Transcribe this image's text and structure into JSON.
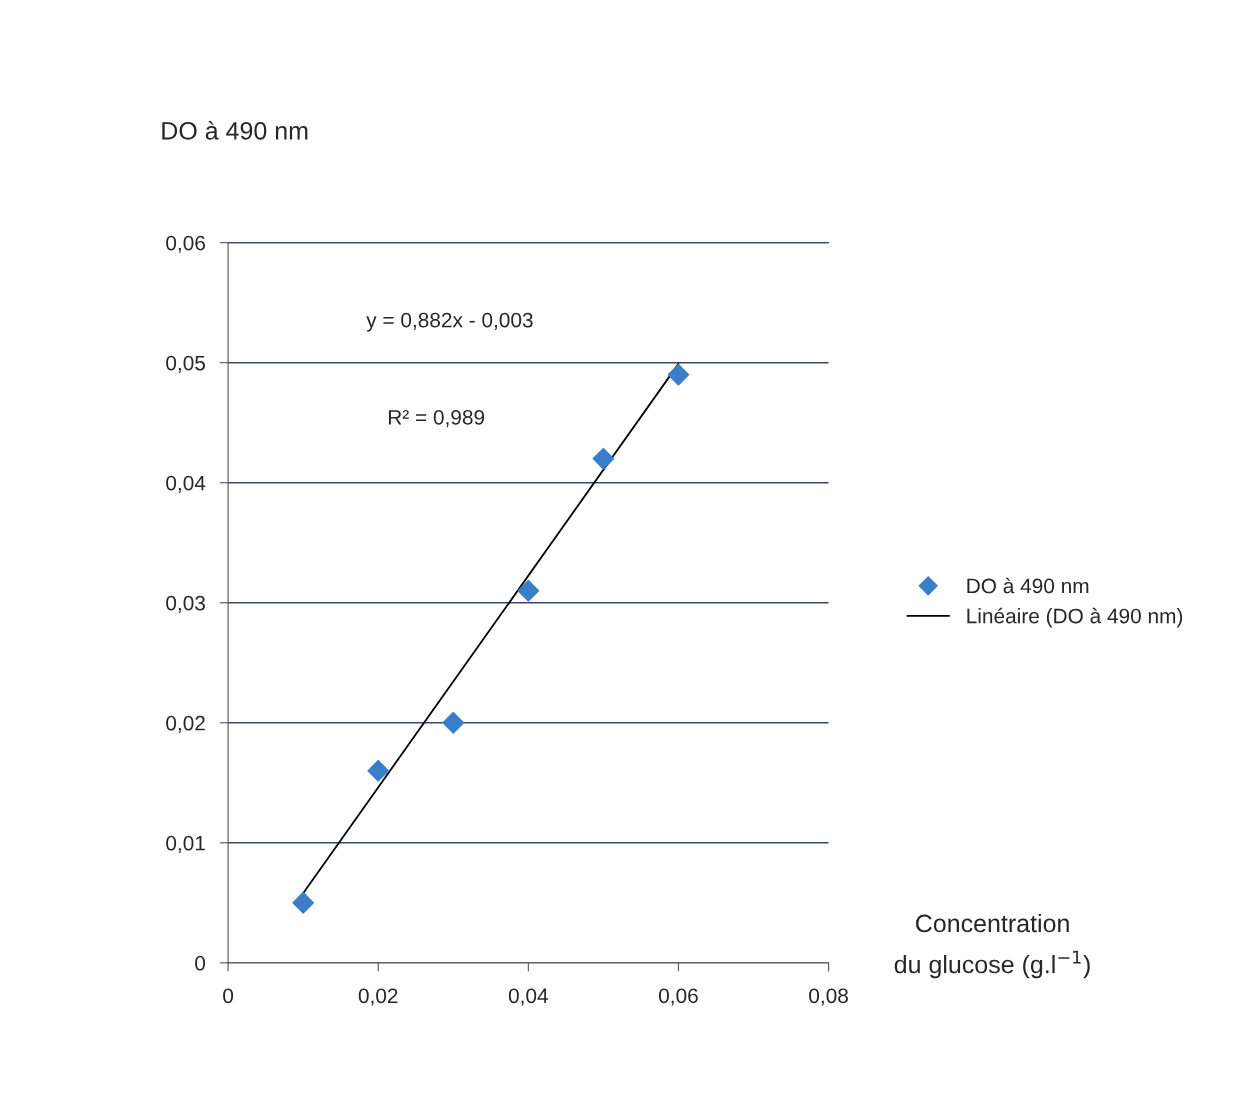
{
  "chart_data": {
    "type": "scatter",
    "xlabel": "Concentration\ndu glucose (g.l$^{−1}$)",
    "ylabel": "DO à 490 nm",
    "x": [
      0.01,
      0.02,
      0.03,
      0.04,
      0.05,
      0.06
    ],
    "series": [
      {
        "name": "DO à 490 nm",
        "color": "#3a7dc9",
        "marker": "diamond",
        "values": [
          0.005,
          0.016,
          0.02,
          0.031,
          0.042,
          0.049
        ]
      },
      {
        "name": "Linéaire (DO à 490 nm)",
        "type": "line",
        "color": "#000000",
        "marker": "none",
        "line_style": "solid",
        "x": [
          0.01,
          0.06
        ],
        "values": [
          0.0058,
          0.0499
        ]
      }
    ],
    "annotations": [
      "y = 0,882x - 0,003",
      "R² = 0,989"
    ],
    "xlim": [
      0,
      0.08
    ],
    "xticks": [
      0,
      {
        "value": 0.02,
        "label": "0,02"
      },
      {
        "value": 0.04,
        "label": "0,04"
      },
      {
        "value": 0.06,
        "label": "0,06"
      },
      {
        "value": 0.08,
        "label": "0,08"
      }
    ],
    "ylim": [
      0,
      0.06
    ],
    "yticks": [
      0,
      {
        "value": 0.01,
        "label": "0,01"
      },
      {
        "value": 0.02,
        "label": "0,02"
      },
      {
        "value": 0.03,
        "label": "0,03"
      },
      {
        "value": 0.04,
        "label": "0,04"
      },
      {
        "value": 0.05,
        "label": "0,05"
      },
      {
        "value": 0.06,
        "label": "0,06"
      }
    ],
    "grid": "y",
    "legend": "right"
  }
}
